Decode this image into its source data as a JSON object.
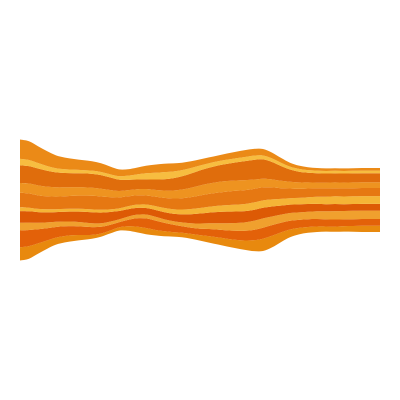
{
  "chart_data": {
    "type": "area",
    "layout": "streamgraph",
    "baseline": "wiggle",
    "axes": "none",
    "grid": false,
    "legend": "none",
    "x": [
      0,
      1,
      2,
      3,
      4,
      5,
      6,
      7,
      8,
      9,
      10,
      11,
      12,
      13,
      14,
      15,
      16,
      17,
      18,
      19,
      20,
      21,
      22,
      23,
      24,
      25,
      26,
      27,
      28,
      29,
      30,
      31,
      32,
      33,
      34,
      35,
      36,
      37,
      38,
      39,
      40
    ],
    "ylim": [
      -62,
      62
    ],
    "series": [
      {
        "color": "#e8890e",
        "values": [
          4.1,
          3.9,
          3.2,
          2.6,
          2.2,
          2.0,
          1.8,
          1.5,
          1.2,
          1.0,
          0.9,
          1.0,
          1.4,
          1.8,
          1.9,
          1.7,
          1.6,
          1.4,
          1.4,
          1.5,
          1.7,
          2.0,
          2.2,
          2.4,
          2.6,
          2.9,
          3.4,
          3.8,
          3.6,
          3.0,
          2.4,
          2.0,
          1.8,
          1.7,
          1.6,
          1.6,
          1.7,
          1.8,
          1.9,
          1.9,
          1.9
        ]
      },
      {
        "color": "#e36109",
        "values": [
          5.2,
          5.0,
          4.4,
          3.8,
          3.3,
          3.0,
          2.8,
          2.6,
          2.4,
          2.1,
          1.8,
          1.6,
          2.0,
          2.6,
          3.0,
          2.9,
          2.6,
          2.3,
          2.0,
          1.9,
          2.0,
          2.2,
          2.4,
          2.6,
          2.8,
          3.0,
          3.2,
          3.4,
          3.3,
          3.0,
          2.7,
          2.5,
          2.4,
          2.3,
          2.2,
          2.2,
          2.1,
          2.1,
          2.1,
          2.1,
          2.1
        ]
      },
      {
        "color": "#f0a02e",
        "values": [
          2.4,
          2.3,
          2.0,
          1.8,
          1.6,
          1.5,
          1.4,
          1.3,
          1.2,
          1.1,
          1.0,
          0.9,
          1.0,
          1.1,
          1.2,
          1.2,
          1.1,
          1.1,
          1.2,
          1.4,
          1.6,
          1.8,
          2.0,
          2.2,
          2.4,
          2.6,
          2.8,
          2.9,
          2.7,
          2.5,
          2.4,
          2.3,
          2.3,
          2.4,
          2.5,
          2.6,
          2.6,
          2.6,
          2.6,
          2.6,
          2.6
        ]
      },
      {
        "color": "#dd5a05",
        "values": [
          3.6,
          3.5,
          3.3,
          3.1,
          3.0,
          3.0,
          3.1,
          3.3,
          3.4,
          3.3,
          3.0,
          2.6,
          2.3,
          2.1,
          2.0,
          2.1,
          2.2,
          2.3,
          2.5,
          2.8,
          3.1,
          3.3,
          3.5,
          3.6,
          3.6,
          3.5,
          3.4,
          3.3,
          3.1,
          2.8,
          2.6,
          2.5,
          2.4,
          2.3,
          2.2,
          2.2,
          2.1,
          2.1,
          2.1,
          2.1,
          2.1
        ]
      },
      {
        "color": "#f5b436",
        "values": [
          1.2,
          1.1,
          1.0,
          1.0,
          0.9,
          0.9,
          0.9,
          0.9,
          0.9,
          0.9,
          0.8,
          0.8,
          0.9,
          1.0,
          1.1,
          1.2,
          1.3,
          1.4,
          1.5,
          1.6,
          1.7,
          1.8,
          1.9,
          2.0,
          2.1,
          2.2,
          2.3,
          2.3,
          2.2,
          2.1,
          2.0,
          2.0,
          2.1,
          2.2,
          2.3,
          2.4,
          2.4,
          2.4,
          2.4,
          2.4,
          2.4
        ]
      },
      {
        "color": "#e67812",
        "values": [
          4.5,
          4.4,
          4.2,
          4.0,
          3.9,
          3.9,
          4.0,
          4.1,
          4.2,
          4.1,
          3.8,
          3.4,
          3.1,
          2.9,
          2.8,
          2.9,
          3.1,
          3.3,
          3.5,
          3.7,
          3.9,
          4.0,
          4.1,
          4.2,
          4.3,
          4.3,
          4.2,
          4.0,
          3.7,
          3.3,
          3.0,
          2.8,
          2.7,
          2.6,
          2.6,
          2.5,
          2.5,
          2.5,
          2.5,
          2.5,
          2.5
        ]
      },
      {
        "color": "#ee9320",
        "values": [
          3.0,
          3.1,
          3.1,
          3.0,
          2.9,
          2.8,
          2.7,
          2.6,
          2.5,
          2.4,
          2.2,
          2.0,
          1.9,
          1.9,
          2.0,
          2.1,
          2.3,
          2.5,
          2.7,
          2.9,
          3.1,
          3.2,
          3.3,
          3.3,
          3.2,
          3.1,
          2.9,
          2.7,
          2.5,
          2.3,
          2.1,
          2.0,
          1.9,
          1.8,
          1.8,
          1.8,
          1.8,
          1.8,
          1.8,
          1.8,
          1.8
        ]
      },
      {
        "color": "#e06d0c",
        "values": [
          5.5,
          5.4,
          5.2,
          4.9,
          4.6,
          4.4,
          4.3,
          4.3,
          4.3,
          4.2,
          3.9,
          3.5,
          3.2,
          3.0,
          3.0,
          3.2,
          3.5,
          3.8,
          4.1,
          4.4,
          4.7,
          4.9,
          5.1,
          5.3,
          5.6,
          5.9,
          6.1,
          6.0,
          5.4,
          4.6,
          3.8,
          3.3,
          3.0,
          2.9,
          2.8,
          2.8,
          2.8,
          2.8,
          2.8,
          2.8,
          2.8
        ]
      },
      {
        "color": "#f7bd40",
        "values": [
          2.0,
          1.9,
          1.7,
          1.5,
          1.3,
          1.2,
          1.1,
          1.0,
          1.0,
          1.0,
          1.0,
          1.1,
          1.3,
          1.6,
          1.9,
          2.1,
          2.2,
          2.1,
          1.9,
          1.7,
          1.5,
          1.4,
          1.3,
          1.3,
          1.3,
          1.3,
          1.3,
          1.2,
          1.1,
          1.0,
          0.9,
          0.9,
          0.8,
          0.8,
          0.8,
          0.8,
          0.8,
          0.8,
          0.8,
          0.8,
          0.8
        ]
      },
      {
        "color": "#eb8a17",
        "values": [
          6.0,
          5.8,
          5.2,
          4.6,
          4.0,
          3.6,
          3.3,
          3.1,
          2.9,
          2.7,
          2.4,
          2.1,
          2.0,
          2.1,
          2.3,
          2.5,
          2.6,
          2.5,
          2.3,
          2.1,
          1.9,
          1.8,
          1.8,
          1.9,
          2.0,
          2.1,
          2.1,
          2.0,
          1.8,
          1.5,
          1.2,
          1.0,
          0.9,
          0.8,
          0.8,
          0.8,
          0.8,
          0.8,
          0.8,
          0.8,
          0.8
        ]
      }
    ]
  }
}
